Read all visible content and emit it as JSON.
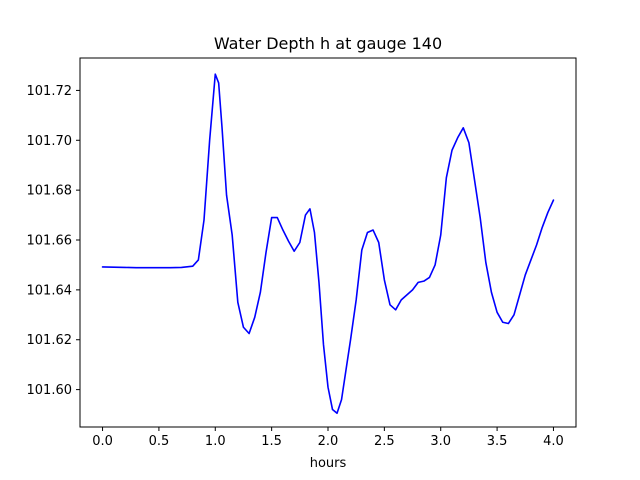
{
  "chart_data": {
    "type": "line",
    "title": "Water Depth h at gauge 140",
    "xlabel": "hours",
    "ylabel": "",
    "xlim": [
      -0.2,
      4.2
    ],
    "ylim": [
      101.585,
      101.733
    ],
    "xticks": [
      0.0,
      0.5,
      1.0,
      1.5,
      2.0,
      2.5,
      3.0,
      3.5,
      4.0
    ],
    "xtick_labels": [
      "0.0",
      "0.5",
      "1.0",
      "1.5",
      "2.0",
      "2.5",
      "3.0",
      "3.5",
      "4.0"
    ],
    "yticks": [
      101.6,
      101.62,
      101.64,
      101.66,
      101.68,
      101.7,
      101.72
    ],
    "ytick_labels": [
      "101.60",
      "101.62",
      "101.64",
      "101.66",
      "101.68",
      "101.70",
      "101.72"
    ],
    "grid": false,
    "series": [
      {
        "color": "#0000ff",
        "x": [
          0.0,
          0.1,
          0.2,
          0.3,
          0.4,
          0.5,
          0.6,
          0.7,
          0.8,
          0.85,
          0.9,
          0.95,
          1.0,
          1.03,
          1.06,
          1.1,
          1.15,
          1.2,
          1.25,
          1.3,
          1.35,
          1.4,
          1.45,
          1.5,
          1.55,
          1.6,
          1.65,
          1.7,
          1.75,
          1.8,
          1.84,
          1.88,
          1.92,
          1.96,
          2.0,
          2.04,
          2.08,
          2.12,
          2.16,
          2.2,
          2.25,
          2.3,
          2.35,
          2.4,
          2.45,
          2.5,
          2.55,
          2.6,
          2.65,
          2.7,
          2.75,
          2.8,
          2.85,
          2.9,
          2.95,
          3.0,
          3.05,
          3.1,
          3.15,
          3.2,
          3.25,
          3.3,
          3.35,
          3.4,
          3.45,
          3.5,
          3.55,
          3.6,
          3.65,
          3.7,
          3.75,
          3.8,
          3.85,
          3.9,
          3.95,
          4.0
        ],
        "y": [
          101.6492,
          101.6491,
          101.649,
          101.6489,
          101.6489,
          101.6489,
          101.6489,
          101.649,
          101.6495,
          101.652,
          101.668,
          101.7,
          101.7265,
          101.723,
          101.705,
          101.678,
          101.662,
          101.635,
          101.625,
          101.6225,
          101.629,
          101.639,
          101.655,
          101.669,
          101.669,
          101.664,
          101.6595,
          101.6555,
          101.659,
          101.67,
          101.6725,
          101.663,
          101.643,
          101.618,
          101.601,
          101.592,
          101.5905,
          101.596,
          101.608,
          101.62,
          101.636,
          101.656,
          101.663,
          101.664,
          101.659,
          101.644,
          101.634,
          101.632,
          101.636,
          101.638,
          101.64,
          101.643,
          101.6435,
          101.645,
          101.65,
          101.662,
          101.685,
          101.696,
          101.701,
          101.705,
          101.699,
          101.684,
          101.669,
          101.651,
          101.639,
          101.631,
          101.627,
          101.6265,
          101.63,
          101.638,
          101.646,
          101.652,
          101.658,
          101.665,
          101.671,
          101.676
        ]
      }
    ]
  }
}
